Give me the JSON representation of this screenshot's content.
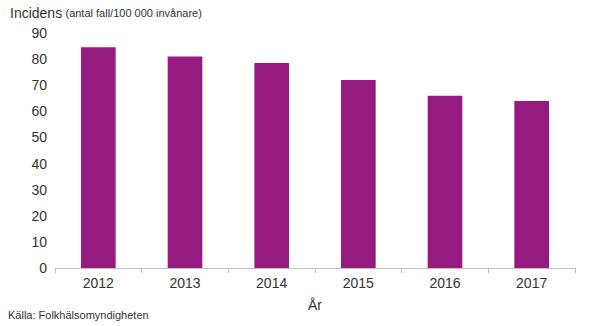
{
  "chart_data": {
    "type": "bar",
    "y_label": "Incidens (antal fall/100 000 invånare)",
    "x_label": "År",
    "source": "Källa: Folkhälsomyndigheten",
    "categories": [
      "2012",
      "2013",
      "2014",
      "2015",
      "2016",
      "2017"
    ],
    "values": [
      84.5,
      81,
      78.5,
      72,
      66,
      64
    ],
    "color": "#951b81",
    "ylim": [
      0,
      90
    ],
    "yticks": [
      0,
      10,
      20,
      30,
      40,
      50,
      60,
      70,
      80,
      90
    ],
    "grid": false
  }
}
